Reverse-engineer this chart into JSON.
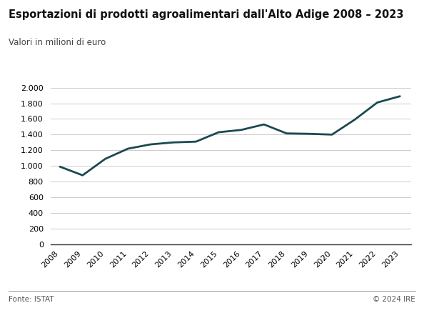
{
  "title": "Esportazioni di prodotti agroalimentari dall'Alto Adige 2008 – 2023",
  "subtitle": "Valori in milioni di euro",
  "footer_left": "Fonte: ISTAT",
  "footer_right": "© 2024 IRE",
  "years": [
    2008,
    2009,
    2010,
    2011,
    2012,
    2013,
    2014,
    2015,
    2016,
    2017,
    2018,
    2019,
    2020,
    2021,
    2022,
    2023
  ],
  "values": [
    990,
    880,
    1090,
    1220,
    1275,
    1300,
    1310,
    1430,
    1460,
    1530,
    1415,
    1410,
    1400,
    1590,
    1810,
    1890
  ],
  "line_color": "#1a4a50",
  "line_width": 2.0,
  "ylim": [
    0,
    2000
  ],
  "yticks": [
    0,
    200,
    400,
    600,
    800,
    1000,
    1200,
    1400,
    1600,
    1800,
    2000
  ],
  "background_color": "#ffffff",
  "grid_color": "#cccccc",
  "title_fontsize": 10.5,
  "subtitle_fontsize": 8.5,
  "tick_fontsize": 8,
  "footer_fontsize": 7.5
}
